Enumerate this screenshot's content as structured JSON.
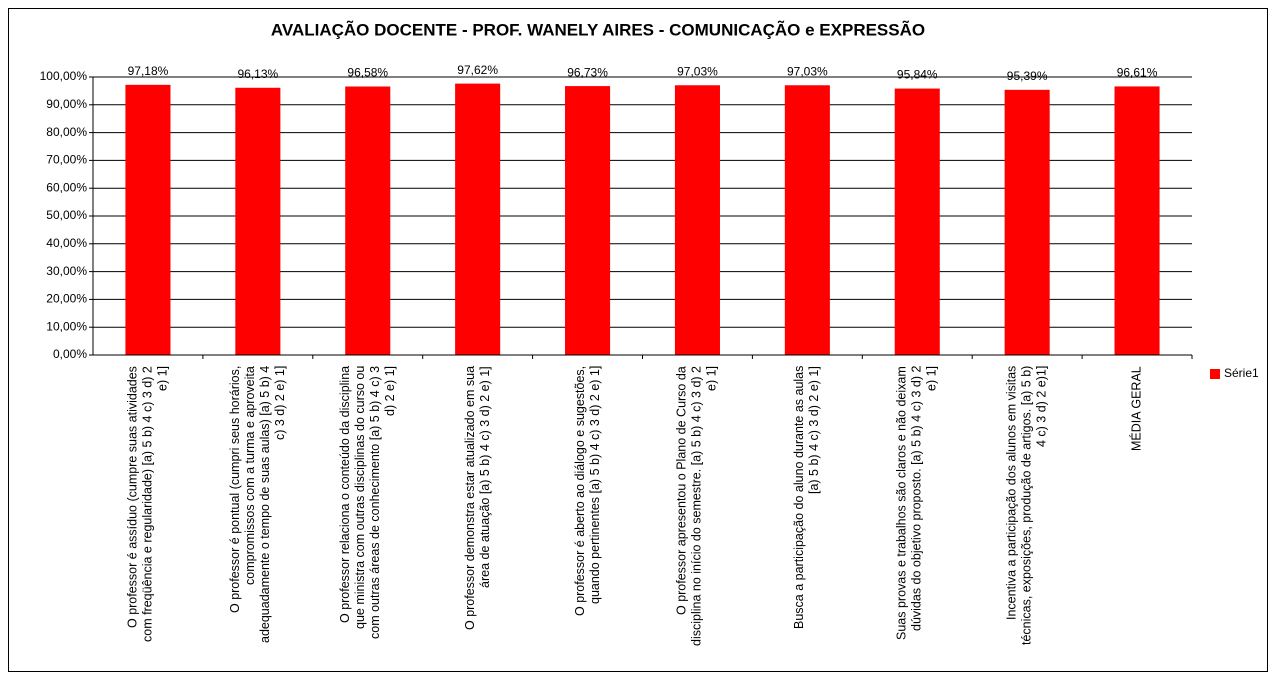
{
  "chart_data": {
    "type": "bar",
    "title": "AVALIAÇÃO DOCENTE - PROF. WANELY AIRES - COMUNICAÇÃO e EXPRESSÃO",
    "categories": [
      "O professor é assíduo (cumpre suas atividades com freqüência e regularidade) [a) 5 b) 4 c) 3 d) 2 e) 1]",
      "O professor é pontual (cumpri seus horários, compromissos com a turma e aproveita adequadamente o tempo de suas aulas) [a) 5 b) 4 c) 3 d) 2 e) 1]",
      "O professor relaciona o conteúdo da disciplina que ministra com outras disciplinas do curso ou com outras áreas de conhecimento [a) 5 b) 4 c) 3 d) 2 e) 1]",
      "O professor demonstra estar atualizado em sua área de atuação [a) 5 b) 4 c) 3 d) 2 e) 1]",
      "O professor é aberto ao diálogo e sugestões, quando pertinentes [a) 5 b) 4 c) 3 d) 2 e) 1]",
      "O professor apresentou o Plano de Curso da disciplina no início do semestre. [a) 5 b) 4 c) 3 d) 2 e) 1]",
      "Busca a participação do aluno durante as aulas [a) 5 b) 4 c) 3 d) 2 e) 1]",
      "Suas provas e trabalhos são claros e não deixam dúvidas do objetivo proposto. [a) 5 b) 4 c) 3 d) 2 e) 1]",
      "Incentiva a participação dos alunos em visitas técnicas, exposições, produção de artigos. [a) 5 b) 4 c) 3 d) 2 e)1]",
      "MÉDIA GERAL"
    ],
    "series": [
      {
        "name": "Série1",
        "color": "#ff0000",
        "values": [
          97.18,
          96.13,
          96.58,
          97.62,
          96.73,
          97.03,
          97.03,
          95.84,
          95.39,
          96.61
        ],
        "value_labels": [
          "97,18%",
          "96,13%",
          "96,58%",
          "97,62%",
          "96,73%",
          "97,03%",
          "97,03%",
          "95,84%",
          "95,39%",
          "96,61%"
        ]
      }
    ],
    "ylim": [
      0,
      100
    ],
    "yticks": [
      {
        "value": 0,
        "label": "0,00%"
      },
      {
        "value": 10,
        "label": "10,00%"
      },
      {
        "value": 20,
        "label": "20,00%"
      },
      {
        "value": 30,
        "label": "30,00%"
      },
      {
        "value": 40,
        "label": "40,00%"
      },
      {
        "value": 50,
        "label": "50,00%"
      },
      {
        "value": 60,
        "label": "60,00%"
      },
      {
        "value": 70,
        "label": "70,00%"
      },
      {
        "value": 80,
        "label": "80,00%"
      },
      {
        "value": 90,
        "label": "90,00%"
      },
      {
        "value": 100,
        "label": "100,00%"
      }
    ],
    "grid": true,
    "legend": "right"
  }
}
